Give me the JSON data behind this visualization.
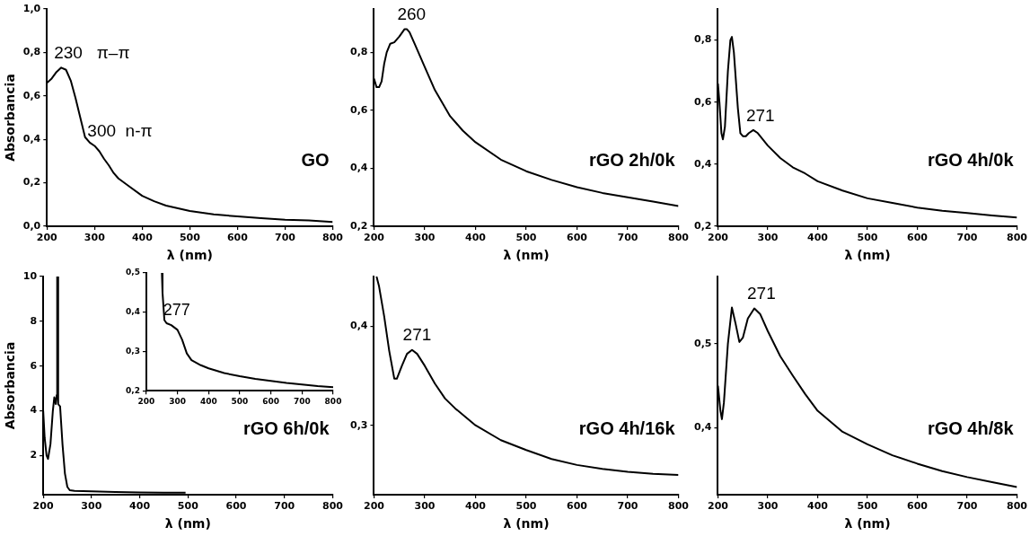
{
  "chart_data": [
    {
      "type": "line",
      "xlabel": "λ (nm)",
      "ylabel": "Absorbancia",
      "marker": "none",
      "xlim": [
        200,
        800
      ],
      "xticks": [
        200,
        300,
        400,
        500,
        600,
        700,
        800
      ],
      "ylim": [
        0,
        1
      ],
      "yticks": [
        {
          "value": 0,
          "label": "0,0"
        },
        {
          "value": 0.2,
          "label": "0,2"
        },
        {
          "value": 0.4,
          "label": "0,4"
        },
        {
          "value": 0.6,
          "label": "0,6"
        },
        {
          "value": 0.8,
          "label": "0,8"
        },
        {
          "value": 1,
          "label": "1,0"
        }
      ],
      "x": [
        200,
        210,
        220,
        230,
        240,
        250,
        260,
        270,
        280,
        290,
        300,
        310,
        320,
        330,
        340,
        350,
        375,
        400,
        425,
        450,
        500,
        550,
        600,
        650,
        700,
        750,
        800
      ],
      "series": [
        {
          "color": "#000000",
          "values": [
            0.66,
            0.68,
            0.71,
            0.73,
            0.72,
            0.67,
            0.59,
            0.5,
            0.41,
            0.385,
            0.37,
            0.345,
            0.31,
            0.28,
            0.245,
            0.22,
            0.18,
            0.14,
            0.115,
            0.095,
            0.07,
            0.055,
            0.045,
            0.037,
            0.03,
            0.027,
            0.02
          ]
        }
      ],
      "annotations": [
        {
          "text": "230   π–π",
          "x": 230,
          "y": 0.73
        },
        {
          "text": "300  n-π",
          "x": 300,
          "y": 0.37
        },
        "GO"
      ]
    },
    {
      "type": "line",
      "xlabel": "λ (nm)",
      "marker": "none",
      "xlim": [
        200,
        800
      ],
      "xticks": [
        200,
        300,
        400,
        500,
        600,
        700,
        800
      ],
      "ylim": [
        0.2,
        0.95
      ],
      "yticks": [
        {
          "value": 0.2,
          "label": "0,2"
        },
        {
          "value": 0.4,
          "label": "0,4"
        },
        {
          "value": 0.6,
          "label": "0,6"
        },
        {
          "value": 0.8,
          "label": "0,8"
        }
      ],
      "x": [
        200,
        205,
        210,
        215,
        220,
        225,
        232,
        240,
        250,
        260,
        265,
        270,
        280,
        300,
        320,
        350,
        375,
        400,
        450,
        500,
        550,
        600,
        650,
        700,
        750,
        800
      ],
      "series": [
        {
          "color": "#000000",
          "values": [
            0.71,
            0.68,
            0.68,
            0.7,
            0.76,
            0.8,
            0.83,
            0.835,
            0.855,
            0.88,
            0.88,
            0.87,
            0.83,
            0.75,
            0.67,
            0.58,
            0.53,
            0.49,
            0.43,
            0.39,
            0.36,
            0.335,
            0.315,
            0.3,
            0.285,
            0.27
          ]
        }
      ],
      "annotations": [
        {
          "text": "260",
          "x": 260,
          "y": 0.88
        },
        "rGO 2h/0k"
      ]
    },
    {
      "type": "line",
      "xlabel": "λ (nm)",
      "marker": "none",
      "xlim": [
        200,
        800
      ],
      "xticks": [
        200,
        300,
        400,
        500,
        600,
        700,
        800
      ],
      "ylim": [
        0.2,
        0.9
      ],
      "yticks": [
        {
          "value": 0.2,
          "label": "0,2"
        },
        {
          "value": 0.4,
          "label": "0,4"
        },
        {
          "value": 0.6,
          "label": "0,6"
        },
        {
          "value": 0.8,
          "label": "0,8"
        }
      ],
      "x": [
        200,
        203,
        207,
        210,
        214,
        220,
        225,
        228,
        232,
        240,
        245,
        250,
        256,
        262,
        271,
        280,
        300,
        325,
        350,
        375,
        400,
        450,
        500,
        550,
        600,
        650,
        700,
        750,
        800
      ],
      "series": [
        {
          "color": "#000000",
          "values": [
            0.66,
            0.6,
            0.5,
            0.48,
            0.52,
            0.7,
            0.8,
            0.81,
            0.76,
            0.58,
            0.5,
            0.49,
            0.49,
            0.5,
            0.51,
            0.5,
            0.46,
            0.42,
            0.39,
            0.37,
            0.345,
            0.315,
            0.29,
            0.275,
            0.26,
            0.25,
            0.243,
            0.235,
            0.228
          ]
        }
      ],
      "annotations": [
        {
          "text": "271",
          "x": 271,
          "y": 0.51
        },
        "rGO 4h/0k"
      ]
    },
    {
      "type": "line",
      "xlabel": "λ (nm)",
      "ylabel": "Absorbancia",
      "marker": "none",
      "xlim": [
        200,
        800
      ],
      "xticks": [
        200,
        300,
        400,
        500,
        600,
        700,
        800
      ],
      "ylim": [
        0.25,
        10
      ],
      "yticks": [
        2,
        4,
        6,
        8,
        10
      ],
      "x": [
        200,
        203,
        207,
        210,
        215,
        220,
        223,
        226,
        228,
        229,
        230,
        231,
        235,
        240,
        245,
        250,
        255,
        265,
        300,
        350,
        400,
        450,
        495
      ],
      "series": [
        {
          "color": "#000000",
          "values": [
            4.0,
            2.8,
            2.0,
            1.85,
            2.5,
            4.0,
            4.6,
            4.3,
            4.7,
            10,
            10,
            4.3,
            4.2,
            2.5,
            1.2,
            0.6,
            0.45,
            0.42,
            0.4,
            0.37,
            0.35,
            0.34,
            0.34
          ]
        }
      ],
      "annotations": [
        "rGO 6h/0k"
      ]
    },
    {
      "type": "line",
      "marker": "none",
      "xlim": [
        200,
        800
      ],
      "xticks": [
        200,
        300,
        400,
        500,
        600,
        700,
        800
      ],
      "ylim": [
        0.2,
        0.5
      ],
      "yticks": [
        {
          "value": 0.2,
          "label": "0,2"
        },
        {
          "value": 0.3,
          "label": "0,3"
        },
        {
          "value": 0.4,
          "label": "0,4"
        },
        {
          "value": 0.5,
          "label": "0,5"
        }
      ],
      "x": [
        250,
        252,
        258,
        265,
        280,
        300,
        315,
        330,
        345,
        375,
        400,
        450,
        500,
        550,
        600,
        650,
        700,
        750,
        800
      ],
      "series": [
        {
          "color": "#000000",
          "values": [
            0.5,
            0.45,
            0.38,
            0.372,
            0.367,
            0.355,
            0.33,
            0.295,
            0.278,
            0.265,
            0.257,
            0.245,
            0.237,
            0.23,
            0.225,
            0.22,
            0.216,
            0.212,
            0.209
          ]
        }
      ],
      "annotations": [
        {
          "text": "277",
          "x": 277,
          "y": 0.37
        }
      ]
    },
    {
      "type": "line",
      "xlabel": "λ (nm)",
      "marker": "none",
      "xlim": [
        200,
        800
      ],
      "xticks": [
        200,
        300,
        400,
        500,
        600,
        700,
        800
      ],
      "ylim": [
        0.23,
        0.45
      ],
      "yticks": [
        {
          "value": 0.3,
          "label": "0,3"
        },
        {
          "value": 0.4,
          "label": "0,4"
        }
      ],
      "x": [
        205,
        210,
        220,
        230,
        240,
        245,
        255,
        265,
        275,
        285,
        300,
        320,
        340,
        360,
        400,
        450,
        500,
        550,
        600,
        650,
        700,
        750,
        800
      ],
      "series": [
        {
          "color": "#000000",
          "values": [
            0.45,
            0.44,
            0.41,
            0.375,
            0.347,
            0.347,
            0.36,
            0.372,
            0.376,
            0.372,
            0.36,
            0.342,
            0.327,
            0.317,
            0.3,
            0.285,
            0.275,
            0.266,
            0.26,
            0.256,
            0.253,
            0.251,
            0.25
          ]
        }
      ],
      "annotations": [
        {
          "text": "271",
          "x": 271,
          "y": 0.376
        },
        "rGO 4h/16k"
      ]
    },
    {
      "type": "line",
      "xlabel": "λ (nm)",
      "marker": "none",
      "xlim": [
        200,
        800
      ],
      "xticks": [
        200,
        300,
        400,
        500,
        600,
        700,
        800
      ],
      "ylim": [
        0.32,
        0.58
      ],
      "yticks": [
        {
          "value": 0.4,
          "label": "0,4"
        },
        {
          "value": 0.5,
          "label": "0,5"
        }
      ],
      "x": [
        200,
        205,
        208,
        212,
        220,
        228,
        235,
        243,
        250,
        260,
        273,
        285,
        300,
        325,
        350,
        375,
        400,
        450,
        500,
        550,
        600,
        650,
        700,
        750,
        800
      ],
      "series": [
        {
          "color": "#000000",
          "values": [
            0.45,
            0.42,
            0.41,
            0.43,
            0.5,
            0.543,
            0.525,
            0.502,
            0.507,
            0.53,
            0.542,
            0.535,
            0.515,
            0.485,
            0.462,
            0.44,
            0.42,
            0.395,
            0.38,
            0.367,
            0.357,
            0.348,
            0.341,
            0.335,
            0.329
          ]
        }
      ],
      "annotations": [
        {
          "text": "271",
          "x": 273,
          "y": 0.542
        },
        "rGO 4h/8k"
      ]
    }
  ]
}
